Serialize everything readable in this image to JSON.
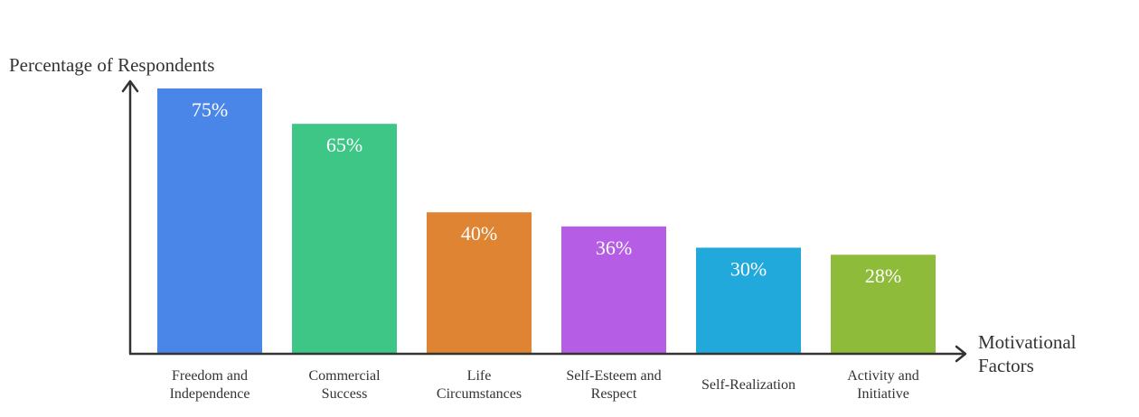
{
  "chart_data": {
    "type": "bar",
    "ylabel": "Percentage of Respondents",
    "xlabel": [
      "Motivational",
      "Factors"
    ],
    "ylim": [
      0,
      80
    ],
    "grid": false,
    "categories": [
      [
        "Freedom and",
        "Independence"
      ],
      [
        "Commercial",
        "Success"
      ],
      [
        "Life",
        "Circumstances"
      ],
      [
        "Self-Esteem and",
        "Respect"
      ],
      [
        "Self-Realization"
      ],
      [
        "Activity and",
        "Initiative"
      ]
    ],
    "values": [
      75,
      65,
      40,
      36,
      30,
      28
    ],
    "value_labels": [
      "75%",
      "65%",
      "40%",
      "36%",
      "30%",
      "28%"
    ],
    "colors": [
      "#4a86e8",
      "#3ec687",
      "#df8432",
      "#b55ee5",
      "#21a9dc",
      "#8fbb3a"
    ]
  },
  "colors": {
    "axis": "#333333"
  }
}
